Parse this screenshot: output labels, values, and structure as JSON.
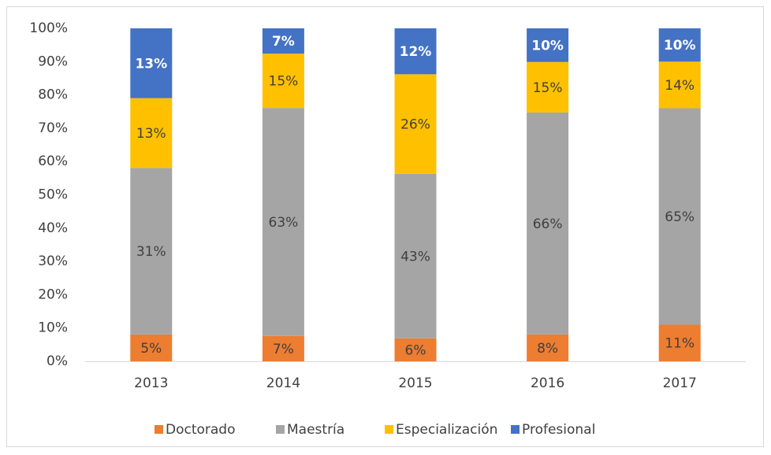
{
  "chart_data": {
    "type": "stacked_percent_bar",
    "categories": [
      "2013",
      "2014",
      "2015",
      "2016",
      "2017"
    ],
    "series": [
      {
        "name": "Doctorado",
        "color": "#ed7d31",
        "values": [
          5,
          7,
          6,
          8,
          11
        ],
        "value_labels": [
          "5%",
          "7%",
          "6%",
          "8%",
          "11%"
        ]
      },
      {
        "name": "Maestría",
        "color": "#a5a5a5",
        "values": [
          31,
          63,
          43,
          66,
          65
        ],
        "value_labels": [
          "31%",
          "63%",
          "43%",
          "66%",
          "65%"
        ]
      },
      {
        "name": "Especialización",
        "color": "#ffc000",
        "values": [
          13,
          15,
          26,
          15,
          14
        ],
        "value_labels": [
          "13%",
          "15%",
          "26%",
          "15%",
          "14%"
        ]
      },
      {
        "name": "Profesional",
        "color": "#4472c4",
        "values": [
          13,
          7,
          12,
          10,
          10
        ],
        "value_labels": [
          "13%",
          "7%",
          "12%",
          "10%",
          "10%"
        ]
      }
    ],
    "ylim": [
      0,
      100
    ],
    "yticks": [
      {
        "value": 0,
        "label": "0%"
      },
      {
        "value": 10,
        "label": "10%"
      },
      {
        "value": 20,
        "label": "20%"
      },
      {
        "value": 30,
        "label": "30%"
      },
      {
        "value": 40,
        "label": "40%"
      },
      {
        "value": 50,
        "label": "50%"
      },
      {
        "value": 60,
        "label": "60%"
      },
      {
        "value": 70,
        "label": "70%"
      },
      {
        "value": 80,
        "label": "80%"
      },
      {
        "value": 90,
        "label": "90%"
      },
      {
        "value": 100,
        "label": "100%"
      }
    ],
    "grid": false,
    "legend": "bottom"
  }
}
